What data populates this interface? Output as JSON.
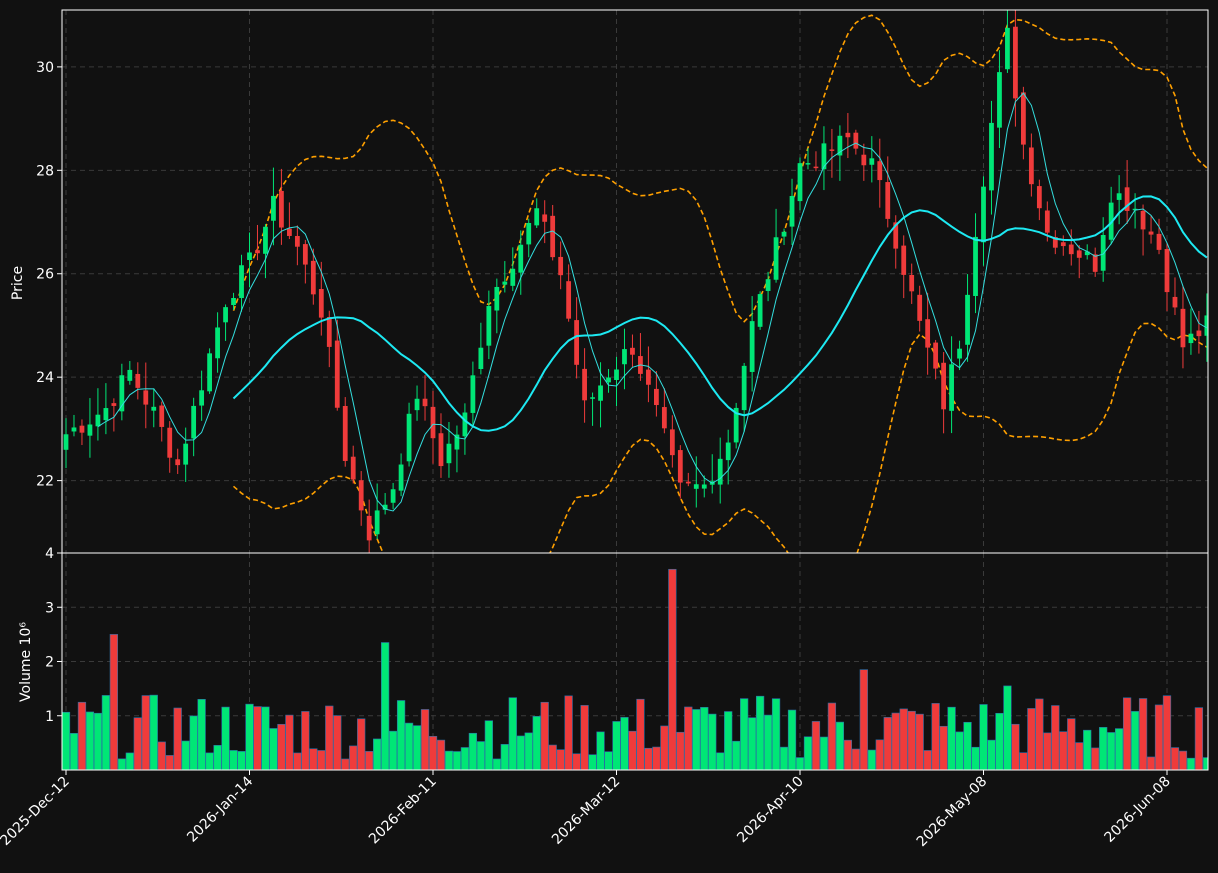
{
  "colors": {
    "background": "#111111",
    "up": "#00e676",
    "down": "#ef3b3b",
    "ma_fast": "#33dede",
    "ma_slow": "#1de9f2",
    "band": "#ffa000",
    "grid": "#3a3a3a",
    "axis": "#ffffff"
  },
  "chart_data": [
    {
      "type": "candlestick",
      "ylabel": "Price",
      "ylim": [
        20.6,
        31.1
      ],
      "yticks": [
        "22",
        "24",
        "26",
        "28",
        "30"
      ],
      "ytick_values": [
        22,
        24,
        26,
        28,
        30
      ],
      "xticks": [
        "2025-Dec-12",
        "2026-Jan-14",
        "2026-Feb-11",
        "2026-Mar-12",
        "2026-Apr-10",
        "2026-May-08",
        "2026-Jun-08"
      ],
      "xtick_index": [
        0,
        23,
        46,
        69,
        92,
        115,
        138
      ],
      "bar_count": 144,
      "grid": true,
      "anchors": [
        [
          0,
          22.9
        ],
        [
          5,
          23.4
        ],
        [
          8,
          24.1
        ],
        [
          11,
          23.3
        ],
        [
          14,
          22.3
        ],
        [
          17,
          23.9
        ],
        [
          20,
          25.5
        ],
        [
          23,
          26.2
        ],
        [
          26,
          27.3
        ],
        [
          29,
          26.5
        ],
        [
          32,
          25.3
        ],
        [
          35,
          22.5
        ],
        [
          38,
          21.0
        ],
        [
          41,
          21.9
        ],
        [
          44,
          23.7
        ],
        [
          47,
          22.4
        ],
        [
          50,
          23.2
        ],
        [
          53,
          25.5
        ],
        [
          56,
          26.3
        ],
        [
          59,
          27.2
        ],
        [
          62,
          26.0
        ],
        [
          65,
          23.4
        ],
        [
          68,
          24.1
        ],
        [
          71,
          24.6
        ],
        [
          74,
          23.3
        ],
        [
          77,
          21.8
        ],
        [
          80,
          21.9
        ],
        [
          83,
          22.8
        ],
        [
          86,
          25.0
        ],
        [
          89,
          26.5
        ],
        [
          92,
          28.1
        ],
        [
          95,
          28.3
        ],
        [
          98,
          28.6
        ],
        [
          101,
          28.1
        ],
        [
          104,
          26.7
        ],
        [
          107,
          25.0
        ],
        [
          110,
          23.5
        ],
        [
          112,
          24.7
        ],
        [
          114,
          26.9
        ],
        [
          116,
          28.9
        ],
        [
          118,
          30.6
        ],
        [
          120,
          28.5
        ],
        [
          123,
          26.8
        ],
        [
          126,
          26.5
        ],
        [
          129,
          26.2
        ],
        [
          131,
          27.6
        ],
        [
          134,
          27.3
        ],
        [
          137,
          26.5
        ],
        [
          140,
          24.6
        ],
        [
          143,
          25.0
        ]
      ],
      "series": [
        {
          "name": "",
          "style": "thin-line",
          "window": 5
        },
        {
          "name": "",
          "style": "thick-line",
          "window": 22
        },
        {
          "name": "",
          "style": "dashed-band",
          "window": 22,
          "stdev_mult": 2
        }
      ]
    },
    {
      "type": "bar",
      "ylabel": "Volume  10⁶",
      "ylim": [
        0,
        4
      ],
      "yticks": [
        "1",
        "2",
        "3",
        "4"
      ],
      "ytick_values": [
        1,
        2,
        3,
        4
      ],
      "spikes": [
        {
          "index": 6,
          "value": 2.5
        },
        {
          "index": 40,
          "value": 2.35
        },
        {
          "index": 76,
          "value": 3.7
        },
        {
          "index": 100,
          "value": 1.85
        },
        {
          "index": 118,
          "value": 1.55
        }
      ],
      "typical_range": [
        0.2,
        1.4
      ]
    }
  ]
}
